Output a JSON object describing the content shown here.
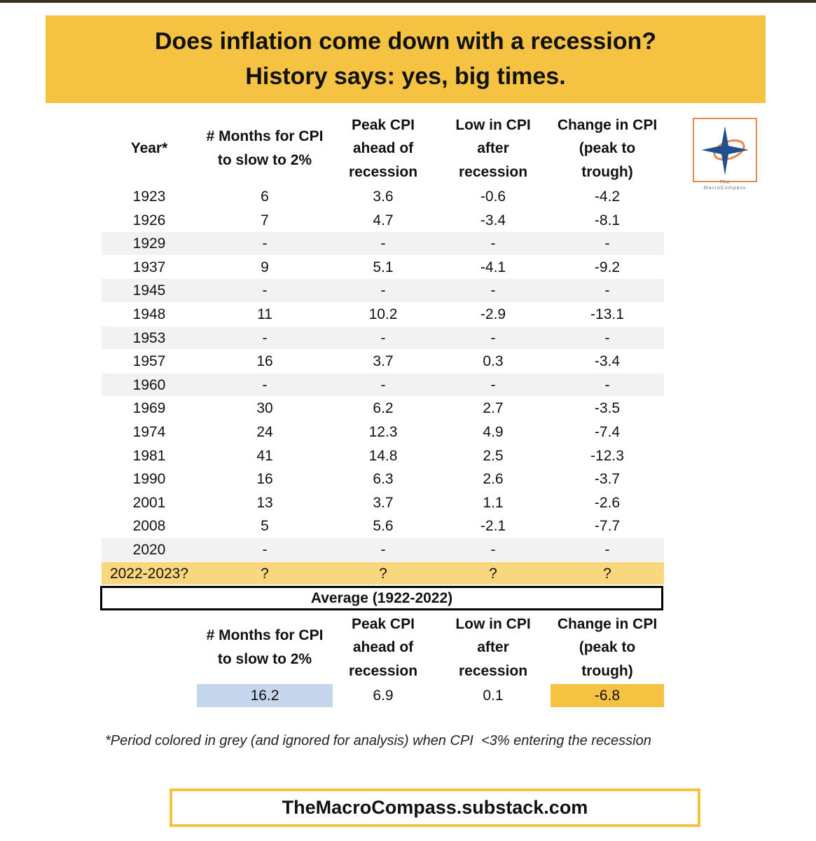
{
  "title": [
    "Does inflation come down with a recession?",
    "History says: yes, big times."
  ],
  "logo": [
    "The",
    "MacroCompass"
  ],
  "table": {
    "headers": [
      [
        "Year*"
      ],
      [
        "# Months for CPI",
        "to slow to 2%"
      ],
      [
        "Peak CPI",
        "ahead of",
        "recession"
      ],
      [
        "Low in CPI",
        "after",
        "recession"
      ],
      [
        "Change in CPI",
        "(peak to",
        "trough)"
      ]
    ],
    "rows": [
      {
        "cells": [
          1923,
          6,
          3.6,
          -0.6,
          -4.2
        ]
      },
      {
        "cells": [
          1926,
          7,
          4.7,
          -3.4,
          -8.1
        ]
      },
      {
        "cells": [
          1929,
          "-",
          "-",
          "-",
          "-"
        ],
        "style": "grey"
      },
      {
        "cells": [
          1937,
          9,
          5.1,
          -4.1,
          -9.2
        ]
      },
      {
        "cells": [
          1945,
          "-",
          "-",
          "-",
          "-"
        ],
        "style": "grey"
      },
      {
        "cells": [
          1948,
          11,
          10.2,
          -2.9,
          -13.1
        ]
      },
      {
        "cells": [
          1953,
          "-",
          "-",
          "-",
          "-"
        ],
        "style": "grey"
      },
      {
        "cells": [
          1957,
          16,
          3.7,
          0.3,
          -3.4
        ]
      },
      {
        "cells": [
          1960,
          "-",
          "-",
          "-",
          "-"
        ],
        "style": "grey"
      },
      {
        "cells": [
          1969,
          30,
          6.2,
          2.7,
          -3.5
        ]
      },
      {
        "cells": [
          1974,
          24,
          12.3,
          4.9,
          -7.4
        ]
      },
      {
        "cells": [
          1981,
          41,
          14.8,
          2.5,
          -12.3
        ]
      },
      {
        "cells": [
          1990,
          16,
          6.3,
          2.6,
          -3.7
        ]
      },
      {
        "cells": [
          2001,
          13,
          3.7,
          1.1,
          -2.6
        ]
      },
      {
        "cells": [
          2008,
          5,
          5.6,
          -2.1,
          -7.7
        ]
      },
      {
        "cells": [
          2020,
          "-",
          "-",
          "-",
          "-"
        ],
        "style": "grey"
      },
      {
        "cells": [
          "2022-2023?",
          "?",
          "?",
          "?",
          "?"
        ],
        "style": "highlight"
      }
    ]
  },
  "average": {
    "label": "Average (1922-2022)",
    "headers": [
      [
        "# Months for CPI",
        "to slow to 2%"
      ],
      [
        "Peak CPI",
        "ahead of",
        "recession"
      ],
      [
        "Low in CPI",
        "after",
        "recession"
      ],
      [
        "Change in CPI",
        "(peak to",
        "trough)"
      ]
    ],
    "values": [
      16.2,
      6.9,
      0.1,
      -6.8
    ],
    "colors": [
      "#c5d6ec",
      null,
      null,
      "#f5c242"
    ]
  },
  "footnote": "*Period colored in grey (and ignored for analysis) when CPI  <3% entering the recession",
  "footer": "TheMacroCompass.substack.com"
}
